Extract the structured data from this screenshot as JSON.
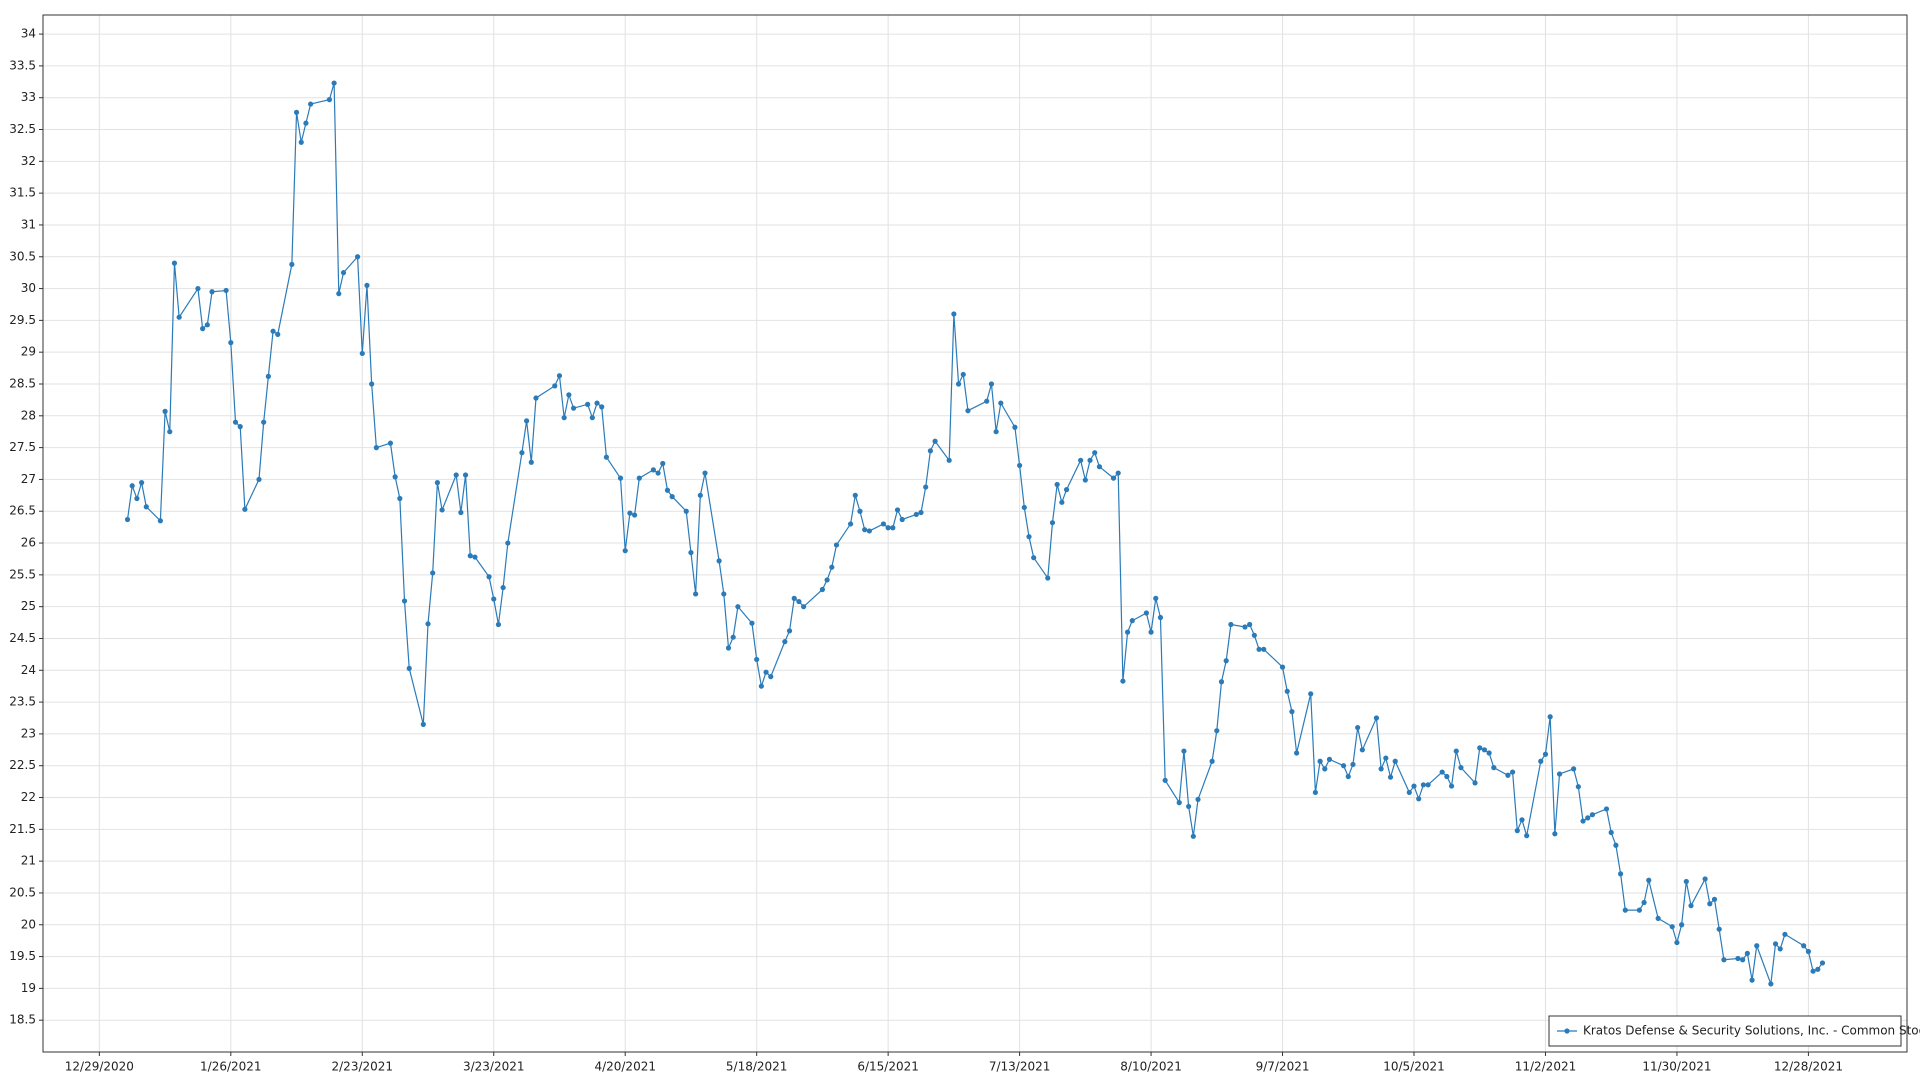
{
  "chart_data": {
    "type": "line",
    "x": [
      "1/4/2021",
      "1/5/2021",
      "1/6/2021",
      "1/7/2021",
      "1/8/2021",
      "1/11/2021",
      "1/12/2021",
      "1/13/2021",
      "1/14/2021",
      "1/15/2021",
      "1/19/2021",
      "1/20/2021",
      "1/21/2021",
      "1/22/2021",
      "1/25/2021",
      "1/26/2021",
      "1/27/2021",
      "1/28/2021",
      "1/29/2021",
      "2/1/2021",
      "2/2/2021",
      "2/3/2021",
      "2/4/2021",
      "2/5/2021",
      "2/8/2021",
      "2/9/2021",
      "2/10/2021",
      "2/11/2021",
      "2/12/2021",
      "2/16/2021",
      "2/17/2021",
      "2/18/2021",
      "2/19/2021",
      "2/22/2021",
      "2/23/2021",
      "2/24/2021",
      "2/25/2021",
      "2/26/2021",
      "3/1/2021",
      "3/2/2021",
      "3/3/2021",
      "3/4/2021",
      "3/5/2021",
      "3/8/2021",
      "3/9/2021",
      "3/10/2021",
      "3/11/2021",
      "3/12/2021",
      "3/15/2021",
      "3/16/2021",
      "3/17/2021",
      "3/18/2021",
      "3/19/2021",
      "3/22/2021",
      "3/23/2021",
      "3/24/2021",
      "3/25/2021",
      "3/26/2021",
      "3/29/2021",
      "3/30/2021",
      "3/31/2021",
      "4/1/2021",
      "4/5/2021",
      "4/6/2021",
      "4/7/2021",
      "4/8/2021",
      "4/9/2021",
      "4/12/2021",
      "4/13/2021",
      "4/14/2021",
      "4/15/2021",
      "4/16/2021",
      "4/19/2021",
      "4/20/2021",
      "4/21/2021",
      "4/22/2021",
      "4/23/2021",
      "4/26/2021",
      "4/27/2021",
      "4/28/2021",
      "4/29/2021",
      "4/30/2021",
      "5/3/2021",
      "5/4/2021",
      "5/5/2021",
      "5/6/2021",
      "5/7/2021",
      "5/10/2021",
      "5/11/2021",
      "5/12/2021",
      "5/13/2021",
      "5/14/2021",
      "5/17/2021",
      "5/18/2021",
      "5/19/2021",
      "5/20/2021",
      "5/21/2021",
      "5/24/2021",
      "5/25/2021",
      "5/26/2021",
      "5/27/2021",
      "5/28/2021",
      "6/1/2021",
      "6/2/2021",
      "6/3/2021",
      "6/4/2021",
      "6/7/2021",
      "6/8/2021",
      "6/9/2021",
      "6/10/2021",
      "6/11/2021",
      "6/14/2021",
      "6/15/2021",
      "6/16/2021",
      "6/17/2021",
      "6/18/2021",
      "6/21/2021",
      "6/22/2021",
      "6/23/2021",
      "6/24/2021",
      "6/25/2021",
      "6/28/2021",
      "6/29/2021",
      "6/30/2021",
      "7/1/2021",
      "7/2/2021",
      "7/6/2021",
      "7/7/2021",
      "7/8/2021",
      "7/9/2021",
      "7/12/2021",
      "7/13/2021",
      "7/14/2021",
      "7/15/2021",
      "7/16/2021",
      "7/19/2021",
      "7/20/2021",
      "7/21/2021",
      "7/22/2021",
      "7/23/2021",
      "7/26/2021",
      "7/27/2021",
      "7/28/2021",
      "7/29/2021",
      "7/30/2021",
      "8/2/2021",
      "8/3/2021",
      "8/4/2021",
      "8/5/2021",
      "8/6/2021",
      "8/9/2021",
      "8/10/2021",
      "8/11/2021",
      "8/12/2021",
      "8/13/2021",
      "8/16/2021",
      "8/17/2021",
      "8/18/2021",
      "8/19/2021",
      "8/20/2021",
      "8/23/2021",
      "8/24/2021",
      "8/25/2021",
      "8/26/2021",
      "8/27/2021",
      "8/30/2021",
      "8/31/2021",
      "9/1/2021",
      "9/2/2021",
      "9/3/2021",
      "9/7/2021",
      "9/8/2021",
      "9/9/2021",
      "9/10/2021",
      "9/13/2021",
      "9/14/2021",
      "9/15/2021",
      "9/16/2021",
      "9/17/2021",
      "9/20/2021",
      "9/21/2021",
      "9/22/2021",
      "9/23/2021",
      "9/24/2021",
      "9/27/2021",
      "9/28/2021",
      "9/29/2021",
      "9/30/2021",
      "10/1/2021",
      "10/4/2021",
      "10/5/2021",
      "10/6/2021",
      "10/7/2021",
      "10/8/2021",
      "10/11/2021",
      "10/12/2021",
      "10/13/2021",
      "10/14/2021",
      "10/15/2021",
      "10/18/2021",
      "10/19/2021",
      "10/20/2021",
      "10/21/2021",
      "10/22/2021",
      "10/25/2021",
      "10/26/2021",
      "10/27/2021",
      "10/28/2021",
      "10/29/2021",
      "11/1/2021",
      "11/2/2021",
      "11/3/2021",
      "11/4/2021",
      "11/5/2021",
      "11/8/2021",
      "11/9/2021",
      "11/10/2021",
      "11/11/2021",
      "11/12/2021",
      "11/15/2021",
      "11/16/2021",
      "11/17/2021",
      "11/18/2021",
      "11/19/2021",
      "11/22/2021",
      "11/23/2021",
      "11/24/2021",
      "11/26/2021",
      "11/29/2021",
      "11/30/2021",
      "12/1/2021",
      "12/2/2021",
      "12/3/2021",
      "12/6/2021",
      "12/7/2021",
      "12/8/2021",
      "12/9/2021",
      "12/10/2021",
      "12/13/2021",
      "12/14/2021",
      "12/15/2021",
      "12/16/2021",
      "12/17/2021",
      "12/20/2021",
      "12/21/2021",
      "12/22/2021",
      "12/23/2021",
      "12/27/2021",
      "12/28/2021",
      "12/29/2021",
      "12/30/2021",
      "12/31/2021"
    ],
    "series": [
      {
        "name": "Kratos Defense & Security Solutions, Inc. - Common Stock",
        "color": "#2b7bb9",
        "values": [
          26.37,
          26.9,
          26.7,
          26.95,
          26.57,
          26.35,
          28.07,
          27.75,
          30.4,
          29.55,
          30.0,
          29.37,
          29.43,
          29.95,
          29.97,
          29.15,
          27.9,
          27.83,
          26.53,
          27.0,
          27.9,
          28.62,
          29.33,
          29.28,
          30.38,
          32.77,
          32.3,
          32.6,
          32.9,
          32.97,
          33.23,
          29.92,
          30.25,
          30.5,
          28.98,
          30.05,
          28.5,
          27.5,
          27.57,
          27.04,
          26.7,
          25.09,
          24.03,
          23.15,
          24.73,
          25.53,
          26.95,
          26.52,
          27.07,
          26.48,
          27.07,
          25.8,
          25.78,
          25.47,
          25.12,
          24.72,
          25.3,
          26.0,
          27.42,
          27.92,
          27.27,
          28.28,
          28.47,
          28.63,
          27.97,
          28.33,
          28.12,
          28.18,
          27.97,
          28.2,
          28.14,
          27.35,
          27.02,
          25.88,
          26.47,
          26.44,
          27.02,
          27.15,
          27.1,
          27.25,
          26.83,
          26.73,
          26.5,
          25.85,
          25.2,
          26.75,
          27.1,
          25.72,
          25.2,
          24.35,
          24.52,
          25.0,
          24.74,
          24.17,
          23.75,
          23.97,
          23.9,
          24.45,
          24.62,
          25.13,
          25.08,
          25.0,
          25.27,
          25.42,
          25.62,
          25.97,
          26.3,
          26.75,
          26.5,
          26.21,
          26.19,
          26.3,
          26.24,
          26.24,
          26.52,
          26.37,
          26.45,
          26.48,
          26.88,
          27.45,
          27.6,
          27.3,
          29.6,
          28.5,
          28.65,
          28.08,
          28.23,
          28.5,
          27.75,
          28.2,
          27.82,
          27.22,
          26.56,
          26.1,
          25.77,
          25.45,
          26.32,
          26.92,
          26.64,
          26.84,
          27.3,
          26.99,
          27.3,
          27.42,
          27.2,
          27.02,
          27.1,
          23.83,
          24.6,
          24.78,
          24.9,
          24.6,
          25.13,
          24.83,
          22.27,
          21.92,
          22.73,
          21.86,
          21.39,
          21.97,
          22.57,
          23.05,
          23.82,
          24.15,
          24.72,
          24.68,
          24.72,
          24.55,
          24.33,
          24.33,
          24.05,
          23.67,
          23.35,
          22.7,
          23.63,
          22.08,
          22.57,
          22.45,
          22.6,
          22.5,
          22.33,
          22.52,
          23.1,
          22.75,
          23.25,
          22.45,
          22.62,
          22.32,
          22.57,
          22.08,
          22.18,
          21.98,
          22.2,
          22.2,
          22.4,
          22.33,
          22.18,
          22.73,
          22.47,
          22.23,
          22.78,
          22.75,
          22.7,
          22.47,
          22.35,
          22.4,
          21.48,
          21.65,
          21.4,
          22.57,
          22.68,
          23.27,
          21.43,
          22.37,
          22.45,
          22.17,
          21.63,
          21.68,
          21.73,
          21.82,
          21.45,
          21.25,
          20.8,
          20.23,
          20.23,
          20.35,
          20.7,
          20.1,
          19.97,
          19.72,
          20.0,
          20.68,
          20.3,
          20.72,
          20.33,
          20.4,
          19.93,
          19.45,
          19.47,
          19.45,
          19.55,
          19.13,
          19.67,
          19.07,
          19.7,
          19.62,
          19.85,
          19.67,
          19.58,
          19.27,
          19.3,
          19.4
        ]
      }
    ],
    "xlim": [
      "12/17/2020",
      "1/18/2022"
    ],
    "xticks": [
      "12/29/2020",
      "1/26/2021",
      "2/23/2021",
      "3/23/2021",
      "4/20/2021",
      "5/18/2021",
      "6/15/2021",
      "7/13/2021",
      "8/10/2021",
      "9/7/2021",
      "10/5/2021",
      "11/2/2021",
      "11/30/2021",
      "12/28/2021"
    ],
    "ylim": [
      18,
      34.3
    ],
    "yticks": [
      18.5,
      19,
      19.5,
      20,
      20.5,
      21,
      21.5,
      22,
      22.5,
      23,
      23.5,
      24,
      24.5,
      25,
      25.5,
      26,
      26.5,
      27,
      27.5,
      28,
      28.5,
      29,
      29.5,
      30,
      30.5,
      31,
      31.5,
      32,
      32.5,
      33,
      33.5,
      34
    ],
    "grid": true,
    "legend": "lower right"
  }
}
